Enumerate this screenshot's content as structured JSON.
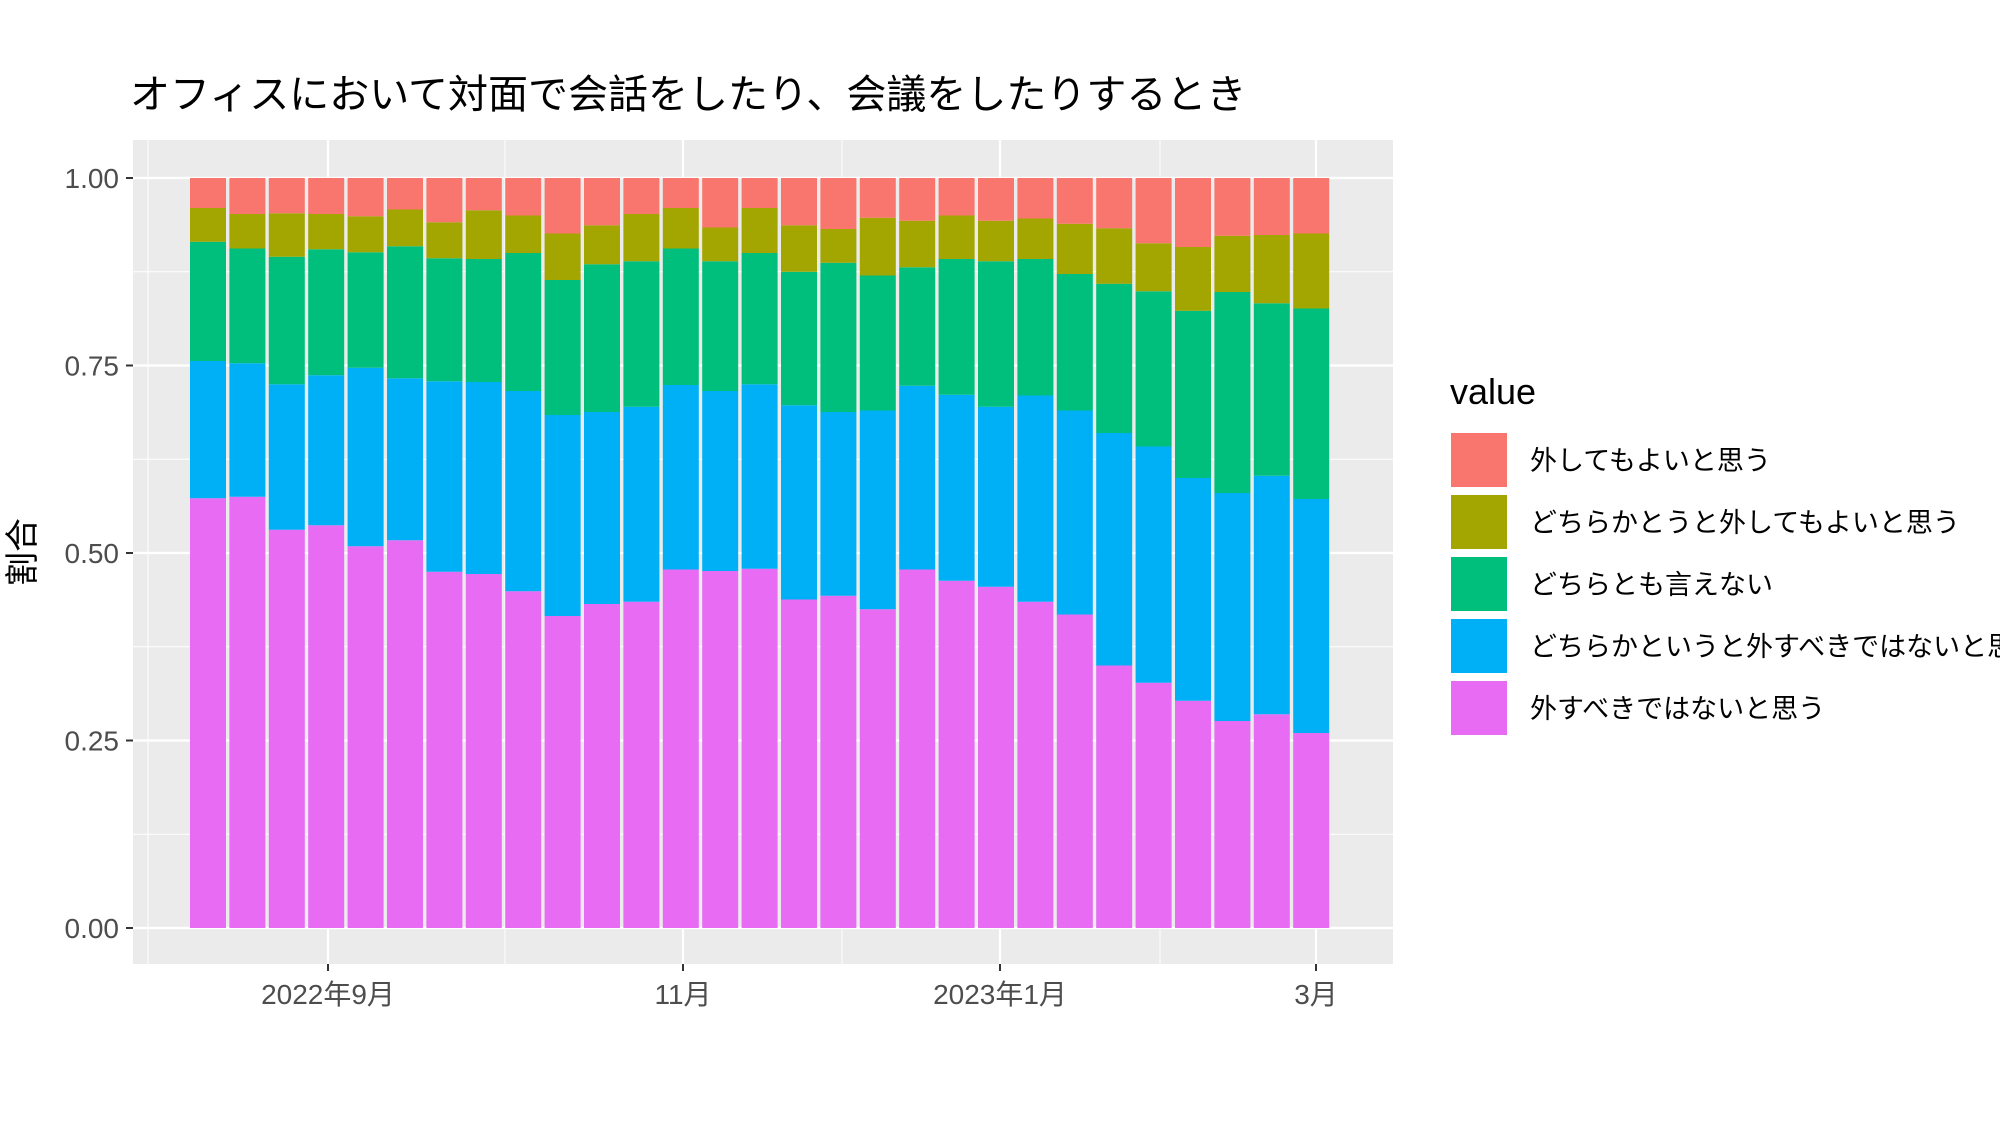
{
  "chart_data": {
    "type": "bar",
    "stacked": true,
    "title": "オフィスにおいて対面で会話をしたり、会議をしたりするとき",
    "xlabel": "",
    "ylabel": "割合",
    "ylim": [
      0,
      1.0
    ],
    "yticks": [
      "0.00",
      "0.25",
      "0.50",
      "0.75",
      "1.00"
    ],
    "xticks": [
      "2022年9月",
      "11月",
      "2023年1月",
      "3月"
    ],
    "grid": true,
    "legend_position": "right",
    "legend_title": "value",
    "series": [
      {
        "name": "外すべきではないと思う",
        "color": "#E76BF3",
        "values": [
          0.573,
          0.575,
          0.531,
          0.537,
          0.509,
          0.517,
          0.475,
          0.472,
          0.449,
          0.416,
          0.432,
          0.435,
          0.478,
          0.476,
          0.479,
          0.438,
          0.443,
          0.425,
          0.478,
          0.463,
          0.455,
          0.435,
          0.418,
          0.35,
          0.327,
          0.303,
          0.276,
          0.285,
          0.26
        ]
      },
      {
        "name": "どちらかというと外すべきではないと思う",
        "color": "#00B0F6",
        "values": [
          0.183,
          0.178,
          0.194,
          0.2,
          0.238,
          0.216,
          0.254,
          0.256,
          0.267,
          0.268,
          0.256,
          0.26,
          0.246,
          0.24,
          0.246,
          0.259,
          0.245,
          0.265,
          0.245,
          0.248,
          0.24,
          0.275,
          0.272,
          0.31,
          0.315,
          0.297,
          0.304,
          0.318,
          0.312
        ]
      },
      {
        "name": "どちらとも言えない",
        "color": "#00BF7D",
        "values": [
          0.159,
          0.153,
          0.17,
          0.168,
          0.154,
          0.176,
          0.164,
          0.164,
          0.184,
          0.18,
          0.197,
          0.194,
          0.182,
          0.173,
          0.175,
          0.178,
          0.199,
          0.18,
          0.158,
          0.181,
          0.194,
          0.182,
          0.182,
          0.199,
          0.207,
          0.223,
          0.268,
          0.23,
          0.254
        ]
      },
      {
        "name": "どちらかとうと外してもよいと思う",
        "color": "#A3A500",
        "values": [
          0.045,
          0.046,
          0.058,
          0.047,
          0.048,
          0.049,
          0.048,
          0.065,
          0.05,
          0.062,
          0.052,
          0.063,
          0.054,
          0.045,
          0.06,
          0.062,
          0.045,
          0.077,
          0.062,
          0.058,
          0.054,
          0.054,
          0.067,
          0.074,
          0.064,
          0.085,
          0.075,
          0.091,
          0.1
        ]
      },
      {
        "name": "外してもよいと思う",
        "color": "#F8766D",
        "values": [
          0.04,
          0.048,
          0.047,
          0.048,
          0.051,
          0.042,
          0.059,
          0.043,
          0.05,
          0.074,
          0.063,
          0.048,
          0.04,
          0.066,
          0.04,
          0.063,
          0.068,
          0.053,
          0.057,
          0.05,
          0.057,
          0.054,
          0.061,
          0.067,
          0.087,
          0.092,
          0.077,
          0.076,
          0.074
        ]
      }
    ]
  }
}
